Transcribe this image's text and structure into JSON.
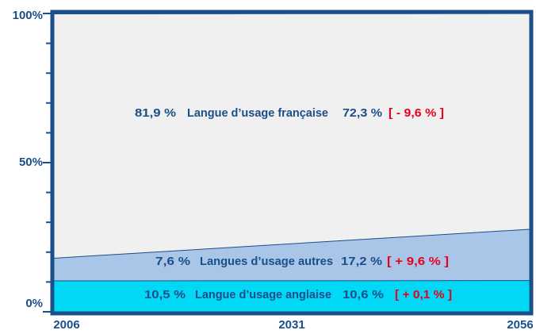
{
  "chart_data": {
    "type": "stacked_area",
    "x": [
      2006,
      2056
    ],
    "xlim": [
      2006,
      2056
    ],
    "xticks": [
      2006,
      2031,
      2056
    ],
    "ylim": [
      0,
      100
    ],
    "yticks": [
      {
        "value": 0,
        "label": "0%"
      },
      {
        "value": 50,
        "label": "50%"
      },
      {
        "value": 100,
        "label": "100%"
      }
    ],
    "yminorticks": [
      10,
      20,
      30,
      40,
      60,
      70,
      80,
      90
    ],
    "series": [
      {
        "name": "Langue d’usage anglaise",
        "color": "#00d8f5",
        "values": [
          10.5,
          10.6
        ],
        "value_labels": [
          "10,5 %",
          "10,6 %"
        ],
        "change": "[ + 0,1 % ]"
      },
      {
        "name": "Langues d’usage autres",
        "color": "#a9c6e8",
        "values": [
          7.6,
          17.2
        ],
        "value_labels": [
          "7,6 %",
          "17,2 %"
        ],
        "change": "[ + 9,6 % ]"
      },
      {
        "name": "Langue d’usage française",
        "color": "#f0f0f0",
        "values": [
          81.9,
          72.3
        ],
        "value_labels": [
          "81,9 %",
          "72,3 %"
        ],
        "change": "[ - 9,6 % ]"
      }
    ]
  }
}
